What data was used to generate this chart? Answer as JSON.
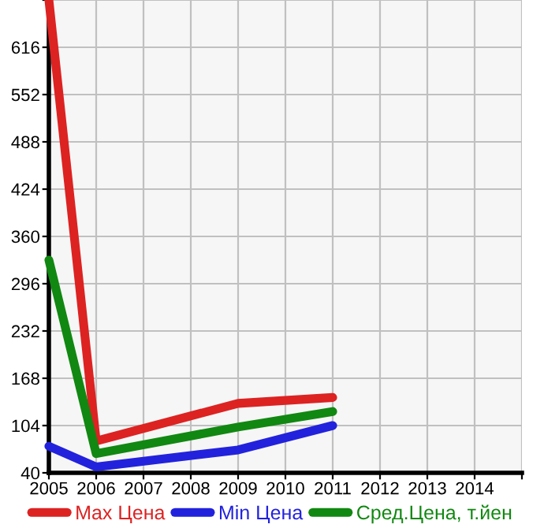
{
  "chart_data": {
    "type": "line",
    "xlim": [
      2005,
      2015
    ],
    "xticks": [
      2005,
      2006,
      2007,
      2008,
      2009,
      2010,
      2011,
      2012,
      2013,
      2014,
      {
        "value": 2015,
        "label": null
      }
    ],
    "ylim": [
      40,
      680
    ],
    "yticks": [
      40,
      104,
      168,
      232,
      296,
      360,
      424,
      488,
      552,
      616,
      {
        "value": 680,
        "label": null
      }
    ],
    "grid": true,
    "legend": "bottom",
    "marker": "none",
    "line_style": "solid",
    "series": [
      {
        "name": "Max Цена",
        "color": "#dd2222",
        "x": [
          2005,
          2006,
          2009,
          2011
        ],
        "values": [
          680,
          83,
          134,
          142
        ]
      },
      {
        "name": "Min Цена",
        "color": "#2222dd",
        "x": [
          2005,
          2006,
          2009,
          2011
        ],
        "values": [
          76,
          48,
          71,
          104
        ]
      },
      {
        "name": "Сред.Цена, т.йен",
        "color": "#118811",
        "x": [
          2005,
          2006,
          2009,
          2011
        ],
        "values": [
          328,
          66,
          102,
          123
        ]
      }
    ]
  }
}
